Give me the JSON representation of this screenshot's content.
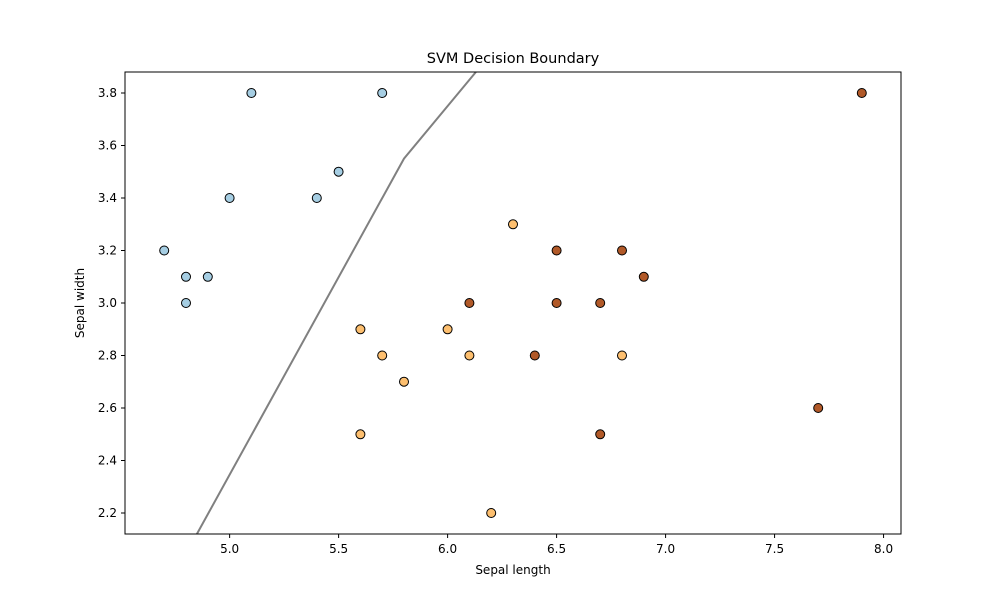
{
  "chart_data": {
    "type": "scatter",
    "title": "SVM Decision Boundary",
    "xlabel": "Sepal length",
    "ylabel": "Sepal width",
    "xlim": [
      4.52,
      8.08
    ],
    "ylim": [
      2.12,
      3.88
    ],
    "xticks": [
      "5.0",
      "5.5",
      "6.0",
      "6.5",
      "7.0",
      "7.5",
      "8.0"
    ],
    "yticks": [
      "2.2",
      "2.4",
      "2.6",
      "2.8",
      "3.0",
      "3.2",
      "3.4",
      "3.6",
      "3.8"
    ],
    "grid": false,
    "colors": {
      "class_0": "#a6cee3",
      "class_1": "#fdbf6f",
      "class_2": "#b15928",
      "boundary": "#808080",
      "marker_edge": "#000000"
    },
    "series": [
      {
        "color_key": "class_0",
        "x": [
          5.1,
          5.7,
          5.5,
          5.0,
          5.4,
          4.7,
          4.8,
          4.9,
          4.8
        ],
        "y": [
          3.8,
          3.8,
          3.5,
          3.4,
          3.4,
          3.2,
          3.1,
          3.1,
          3.0
        ]
      },
      {
        "color_key": "class_1",
        "x": [
          6.3,
          5.6,
          6.0,
          5.7,
          6.1,
          6.8,
          5.8,
          5.6,
          6.2
        ],
        "y": [
          3.3,
          2.9,
          2.9,
          2.8,
          2.8,
          2.8,
          2.7,
          2.5,
          2.2
        ]
      },
      {
        "color_key": "class_2",
        "x": [
          7.9,
          6.5,
          6.8,
          6.9,
          6.1,
          6.5,
          6.7,
          6.4,
          7.7,
          6.7
        ],
        "y": [
          3.8,
          3.2,
          3.2,
          3.1,
          3.0,
          3.0,
          3.0,
          2.8,
          2.6,
          2.5
        ]
      }
    ],
    "boundary": {
      "x": [
        4.85,
        5.8,
        6.13
      ],
      "y": [
        2.12,
        3.55,
        3.88
      ]
    }
  }
}
